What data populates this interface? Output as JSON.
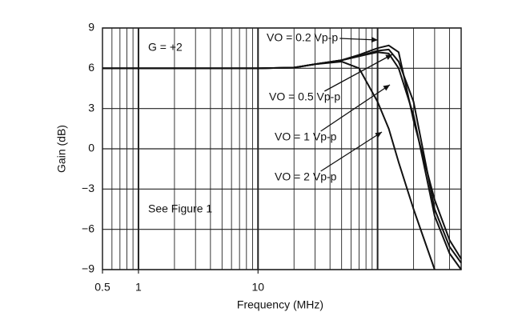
{
  "chart_data": {
    "type": "line",
    "x_label": "Frequency (MHz)",
    "y_label": "Gain (dB)",
    "annotations": [
      "G = +2",
      "See Figure 1"
    ],
    "log_x": true,
    "grid": true,
    "xlim": [
      0.5,
      500
    ],
    "xticks": [
      0.5,
      1,
      10
    ],
    "ylim": [
      -9,
      9
    ],
    "yticks": [
      9,
      6,
      3,
      0,
      {
        "value": -3,
        "label": "−3"
      },
      {
        "value": -6,
        "label": "−6"
      },
      {
        "value": -9,
        "label": "−9"
      }
    ],
    "x": [
      0.5,
      1,
      10,
      20,
      30,
      50,
      70,
      100,
      124,
      150,
      200,
      300,
      400,
      500
    ],
    "series": [
      {
        "name": "VO = 0.2 Vp-p",
        "color": "#111111",
        "values": [
          6,
          6,
          6,
          6.05,
          6.3,
          6.6,
          7.0,
          7.5,
          7.7,
          7.2,
          2.1,
          -3.8,
          -6.8,
          -8.2
        ]
      },
      {
        "name": "VO = 0.5 Vp-p",
        "color": "#111111",
        "values": [
          6,
          6,
          6,
          6.05,
          6.3,
          6.6,
          6.9,
          7.3,
          7.4,
          6.5,
          3.5,
          -4.5,
          -7.3,
          -8.5
        ]
      },
      {
        "name": "VO = 1 Vp-p",
        "color": "#111111",
        "values": [
          6,
          6,
          6,
          6.05,
          6.3,
          6.6,
          6.9,
          7.2,
          7.1,
          6.0,
          2.5,
          -5.0,
          -7.8,
          -9.0
        ]
      },
      {
        "name": "VO = 2 Vp-p",
        "color": "#111111",
        "values": [
          6,
          6,
          6,
          6.05,
          6.3,
          6.5,
          6.0,
          3.5,
          1.5,
          -1.0,
          -4.5,
          -9.0,
          null,
          null
        ]
      }
    ]
  }
}
